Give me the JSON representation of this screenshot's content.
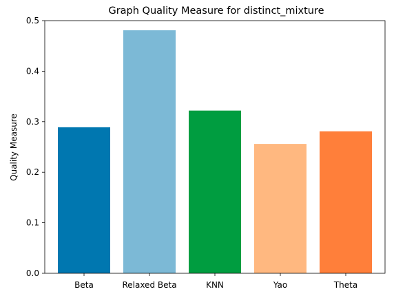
{
  "chart_data": {
    "type": "bar",
    "title": "Graph Quality Measure for distinct_mixture",
    "xlabel": "",
    "ylabel": "Quality Measure",
    "categories": [
      "Beta",
      "Relaxed Beta",
      "KNN",
      "Yao",
      "Theta"
    ],
    "values": [
      0.289,
      0.481,
      0.322,
      0.256,
      0.281
    ],
    "bar_colors": [
      "#0077b0",
      "#7cb9d6",
      "#009d40",
      "#ffb880",
      "#ff7f3a"
    ],
    "ylim": [
      0,
      0.5
    ],
    "yticks": [
      "0.0",
      "0.1",
      "0.2",
      "0.3",
      "0.4",
      "0.5"
    ],
    "grid": false,
    "legend": "none"
  }
}
